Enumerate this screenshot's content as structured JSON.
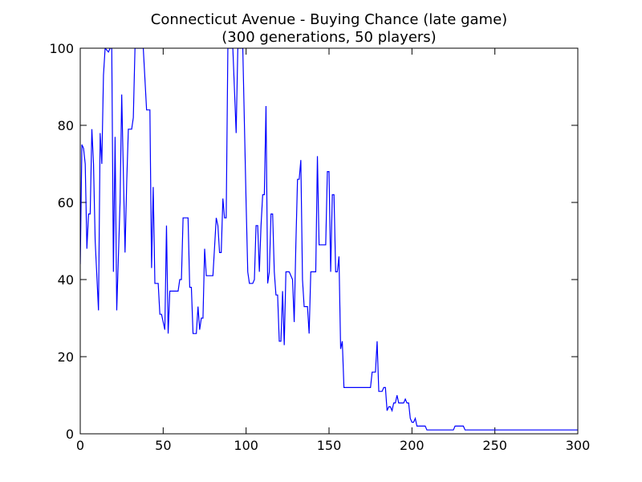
{
  "chart_data": {
    "type": "line",
    "title": "Connecticut Avenue - Buying Chance (late game)",
    "subtitle": "(300 generations, 50 players)",
    "x": [
      0,
      1,
      2,
      3,
      4,
      5,
      6,
      7,
      8,
      9,
      11,
      12,
      13,
      14,
      15,
      17,
      18,
      19,
      20,
      21,
      22,
      24,
      25,
      27,
      28,
      29,
      31,
      32,
      33,
      38,
      40,
      42,
      43,
      44,
      45,
      47,
      48,
      49,
      51,
      52,
      53,
      54,
      59,
      60,
      61,
      62,
      65,
      66,
      67,
      68,
      70,
      71,
      72,
      73,
      74,
      75,
      76,
      80,
      82,
      83,
      84,
      85,
      86,
      87,
      88,
      89,
      92,
      94,
      95,
      97,
      98,
      100,
      101,
      102,
      104,
      105,
      106,
      107,
      108,
      109,
      110,
      111,
      112,
      113,
      114,
      115,
      116,
      117,
      118,
      119,
      120,
      121,
      122,
      123,
      124,
      126,
      128,
      129,
      130,
      131,
      132,
      133,
      134,
      135,
      137,
      138,
      139,
      142,
      143,
      144,
      148,
      149,
      150,
      151,
      152,
      153,
      154,
      155,
      156,
      157,
      158,
      159,
      175,
      176,
      178,
      179,
      180,
      182,
      183,
      184,
      185,
      186,
      187,
      188,
      189,
      190,
      191,
      192,
      195,
      196,
      197,
      198,
      199,
      200,
      201,
      202,
      203,
      208,
      209,
      225,
      226,
      231,
      232,
      300
    ],
    "series": [
      {
        "color": "#0000ff",
        "values": [
          44,
          75,
          74,
          70,
          48,
          57,
          57,
          79,
          70,
          50,
          32,
          78,
          70,
          93,
          100,
          99,
          100,
          100,
          42,
          77,
          32,
          60,
          88,
          47,
          65,
          79,
          79,
          82,
          100,
          100,
          84,
          84,
          43,
          64,
          39,
          39,
          31,
          31,
          27,
          54,
          26,
          37,
          37,
          40,
          40,
          56,
          56,
          38,
          38,
          26,
          26,
          33,
          27,
          30,
          30,
          48,
          41,
          41,
          56,
          54,
          47,
          47,
          61,
          56,
          56,
          100,
          100,
          78,
          100,
          100,
          100,
          60,
          42,
          39,
          39,
          40,
          54,
          54,
          42,
          54,
          62,
          62,
          85,
          39,
          42,
          57,
          57,
          42,
          36,
          36,
          24,
          24,
          37,
          23,
          42,
          42,
          40,
          29,
          49,
          66,
          66,
          71,
          40,
          33,
          33,
          26,
          42,
          42,
          72,
          49,
          49,
          68,
          68,
          42,
          62,
          62,
          42,
          42,
          46,
          22,
          24,
          12,
          12,
          16,
          16,
          24,
          11,
          11,
          12,
          12,
          6,
          7,
          7,
          6,
          8,
          8,
          10,
          8,
          8,
          9,
          8,
          8,
          4,
          3,
          3,
          4,
          2,
          2,
          1,
          1,
          2,
          2,
          1,
          1
        ]
      }
    ],
    "xlim": [
      0,
      300
    ],
    "ylim": [
      0,
      100
    ],
    "xticks": [
      0,
      50,
      100,
      150,
      200,
      250,
      300
    ],
    "yticks": [
      0,
      20,
      40,
      60,
      80,
      100
    ]
  }
}
